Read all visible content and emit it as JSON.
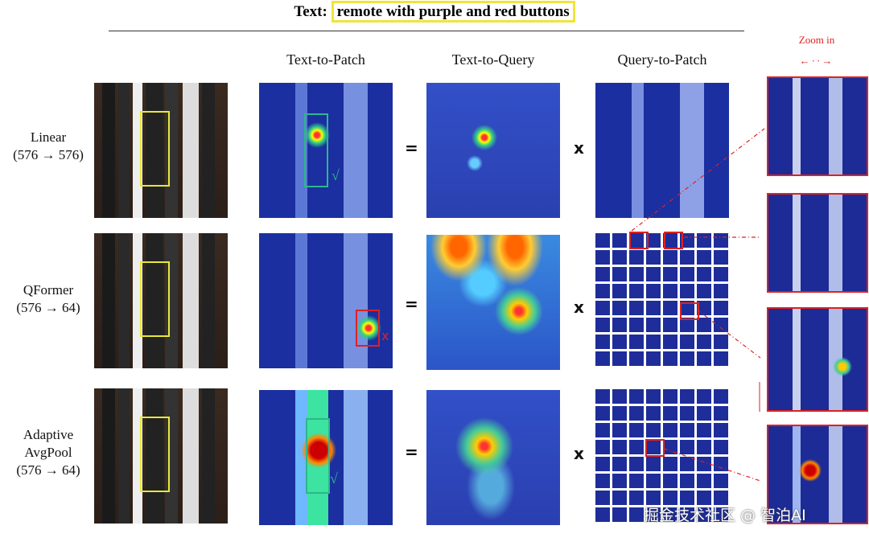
{
  "header": {
    "prefix": "Text:",
    "query": "remote with purple and red buttons"
  },
  "columns": [
    "Text-to-Patch",
    "Text-to-Query",
    "Query-to-Patch"
  ],
  "zoom_label": "Zoom in",
  "rows": [
    {
      "name": "Linear",
      "ratio": "(576 → 576)",
      "equals": "=",
      "times": "x",
      "verdict": "√"
    },
    {
      "name": "QFormer",
      "ratio": "(576 → 64)",
      "equals": "=",
      "times": "x",
      "verdict": "x"
    },
    {
      "name": "Adaptive AvgPool",
      "ratio": "(576 → 64)",
      "equals": "=",
      "times": "x",
      "verdict": "√"
    }
  ],
  "watermark": "掘金技术社区 @ 智泊AI"
}
